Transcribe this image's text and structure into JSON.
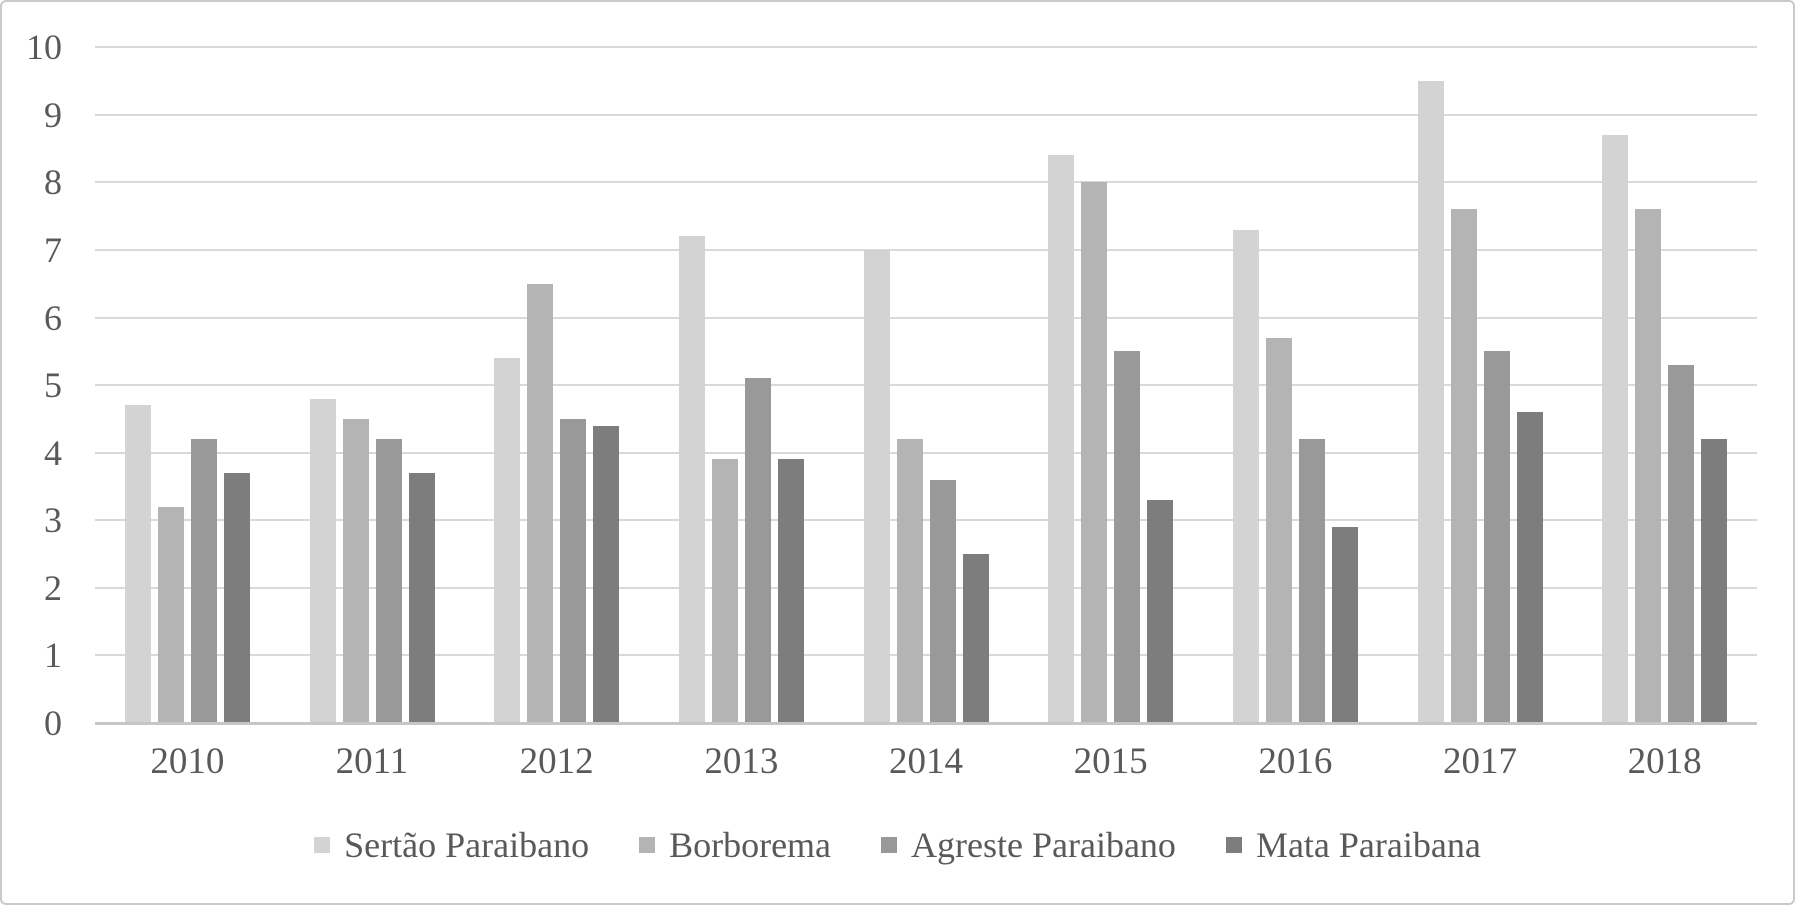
{
  "chart_data": {
    "type": "bar",
    "title": "",
    "xlabel": "",
    "ylabel": "",
    "categories": [
      "2010",
      "2011",
      "2012",
      "2013",
      "2014",
      "2015",
      "2016",
      "2017",
      "2018"
    ],
    "series": [
      {
        "name": "Sertão Paraibano",
        "color": "#d3d3d3",
        "values": [
          4.7,
          4.8,
          5.4,
          7.2,
          7.0,
          8.4,
          7.3,
          9.5,
          8.7
        ]
      },
      {
        "name": "Borborema",
        "color": "#b4b4b4",
        "values": [
          3.2,
          4.5,
          6.5,
          3.9,
          4.2,
          8.0,
          5.7,
          7.6,
          7.6
        ]
      },
      {
        "name": "Agreste Paraibano",
        "color": "#999999",
        "values": [
          4.2,
          4.2,
          4.5,
          5.1,
          3.6,
          5.5,
          4.2,
          5.5,
          5.3
        ]
      },
      {
        "name": "Mata Paraibana",
        "color": "#7d7d7d",
        "values": [
          3.7,
          3.7,
          4.4,
          3.9,
          2.5,
          3.3,
          2.9,
          4.6,
          4.2
        ]
      }
    ],
    "y_axis": {
      "min": 0,
      "max": 10,
      "step": 1,
      "ticks": [
        "0",
        "1",
        "2",
        "3",
        "4",
        "5",
        "6",
        "7",
        "8",
        "9",
        "10"
      ]
    },
    "grid": true,
    "legend_position": "bottom"
  },
  "style": {
    "grid_color": "#d9d9d9",
    "axis_line_color": "#c6c6c6",
    "text_color": "#595959",
    "frame_border_color": "#c9c9c9",
    "background_color": "#ffffff"
  }
}
